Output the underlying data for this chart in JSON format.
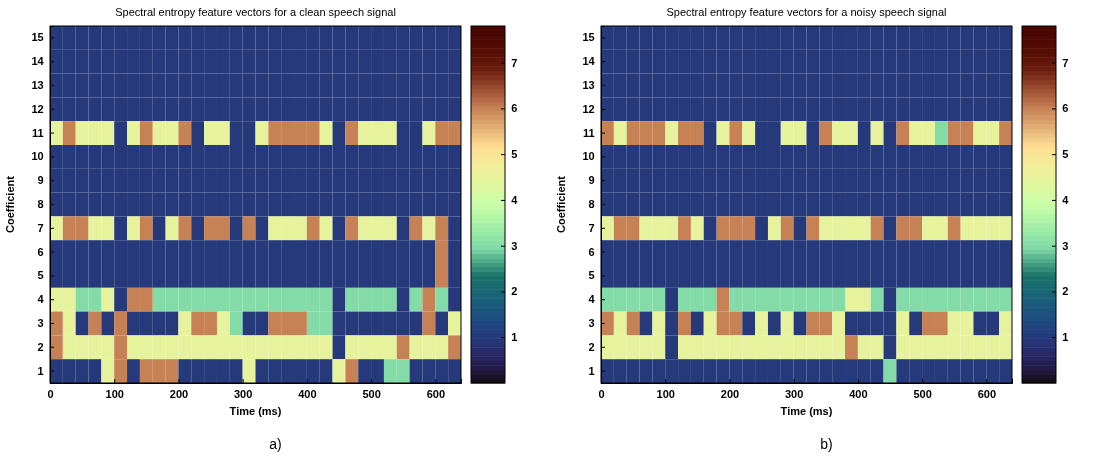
{
  "chart_data": [
    {
      "type": "heatmap",
      "title": "Spectral entropy feature vectors for a clean speech signal",
      "xlabel": "Time (ms)",
      "ylabel": "Coefficient",
      "annotations": [
        "a)"
      ],
      "x": [
        10,
        30,
        50,
        70,
        90,
        110,
        130,
        150,
        170,
        190,
        210,
        230,
        250,
        270,
        290,
        310,
        330,
        350,
        370,
        390,
        410,
        430,
        450,
        470,
        490,
        510,
        530,
        550,
        570,
        590,
        610,
        630
      ],
      "xlim": [
        0,
        640
      ],
      "xticks": [
        0,
        100,
        200,
        300,
        400,
        500,
        600
      ],
      "y_categories": [
        "15",
        "14",
        "13",
        "12",
        "11",
        "10",
        "9",
        "8",
        "7",
        "6",
        "5",
        "4",
        "3",
        "2",
        "1"
      ],
      "clim": [
        0,
        7.8
      ],
      "cticks": [
        1,
        2,
        3,
        4,
        5,
        6,
        7
      ],
      "cells": [
        [
          1,
          1,
          1,
          1,
          1,
          1,
          1,
          1,
          1,
          1,
          1,
          1,
          1,
          1,
          1,
          1,
          1,
          1,
          1,
          1,
          1,
          1,
          1,
          1,
          1,
          1,
          1,
          1,
          1,
          1,
          1,
          1
        ],
        [
          1,
          1,
          1,
          1,
          1,
          1,
          1,
          1,
          1,
          1,
          1,
          1,
          1,
          1,
          1,
          1,
          1,
          1,
          1,
          1,
          1,
          1,
          1,
          1,
          1,
          1,
          1,
          1,
          1,
          1,
          1,
          1
        ],
        [
          1,
          1,
          1,
          1,
          1,
          1,
          1,
          1,
          1,
          1,
          1,
          1,
          1,
          1,
          1,
          1,
          1,
          1,
          1,
          1,
          1,
          1,
          1,
          1,
          1,
          1,
          1,
          1,
          1,
          1,
          1,
          1
        ],
        [
          1,
          1,
          1,
          1,
          1,
          1,
          1,
          1,
          1,
          1,
          1,
          1,
          1,
          1,
          1,
          1,
          1,
          1,
          1,
          1,
          1,
          1,
          1,
          1,
          1,
          1,
          1,
          1,
          1,
          1,
          1,
          1
        ],
        [
          4.5,
          6,
          4.5,
          4.5,
          4.5,
          1,
          4.5,
          6,
          4.5,
          4.5,
          6,
          1,
          4.5,
          4.5,
          1,
          1,
          4.5,
          6,
          6,
          6,
          6,
          4.5,
          1,
          6,
          4.5,
          4.5,
          4.5,
          1,
          1,
          4.5,
          6,
          6
        ],
        [
          1,
          1,
          1,
          1,
          1,
          1,
          1,
          1,
          1,
          1,
          1,
          1,
          1,
          1,
          1,
          1,
          1,
          1,
          1,
          1,
          1,
          1,
          1,
          1,
          1,
          1,
          1,
          1,
          1,
          1,
          1,
          1
        ],
        [
          1,
          1,
          1,
          1,
          1,
          1,
          1,
          1,
          1,
          1,
          1,
          1,
          1,
          1,
          1,
          1,
          1,
          1,
          1,
          1,
          1,
          1,
          1,
          1,
          1,
          1,
          1,
          1,
          1,
          1,
          1,
          1
        ],
        [
          1,
          1,
          1,
          1,
          1,
          1,
          1,
          1,
          1,
          1,
          1,
          1,
          1,
          1,
          1,
          1,
          1,
          1,
          1,
          1,
          1,
          1,
          1,
          1,
          1,
          1,
          1,
          1,
          1,
          1,
          1,
          1
        ],
        [
          4.5,
          6,
          6,
          4.5,
          4.5,
          1,
          4.5,
          6,
          1,
          4.5,
          6,
          1,
          6,
          6,
          1,
          6,
          1,
          4.5,
          4.5,
          4.5,
          6,
          4.5,
          1,
          6,
          4.5,
          4.5,
          4.5,
          1,
          6,
          4.5,
          6,
          1
        ],
        [
          1,
          1,
          1,
          1,
          1,
          1,
          1,
          1,
          1,
          1,
          1,
          1,
          1,
          1,
          1,
          1,
          1,
          1,
          1,
          1,
          1,
          1,
          1,
          1,
          1,
          1,
          1,
          1,
          1,
          1,
          6,
          1
        ],
        [
          1,
          1,
          1,
          1,
          1,
          1,
          1,
          1,
          1,
          1,
          1,
          1,
          1,
          1,
          1,
          1,
          1,
          1,
          1,
          1,
          1,
          1,
          1,
          1,
          1,
          1,
          1,
          1,
          1,
          1,
          6,
          1
        ],
        [
          4.5,
          4.5,
          3,
          3,
          4.5,
          1,
          6,
          6,
          3,
          3,
          3,
          3,
          3,
          3,
          3,
          3,
          3,
          3,
          3,
          3,
          3,
          3,
          1,
          3,
          3,
          3,
          3,
          1,
          3,
          6,
          3,
          1
        ],
        [
          6,
          4.5,
          1,
          6,
          1,
          6,
          1,
          1,
          1,
          1,
          4.5,
          6,
          6,
          4.5,
          3,
          1,
          1,
          6,
          6,
          6,
          3,
          3,
          1,
          1,
          1,
          1,
          1,
          1,
          1,
          6,
          1,
          4.5
        ],
        [
          6,
          4.5,
          4.5,
          4.5,
          4.5,
          6,
          4.5,
          4.5,
          4.5,
          4.5,
          4.5,
          4.5,
          4.5,
          4.5,
          4.5,
          4.5,
          4.5,
          4.5,
          4.5,
          4.5,
          4.5,
          4.5,
          1,
          4.5,
          4.5,
          4.5,
          4.5,
          6,
          4.5,
          4.5,
          4.5,
          6
        ],
        [
          1,
          1,
          1,
          1,
          4.5,
          6,
          1,
          6,
          6,
          6,
          1,
          1,
          1,
          1,
          1,
          4.5,
          1,
          1,
          1,
          1,
          1,
          1,
          4.5,
          6,
          1,
          1,
          3,
          3,
          1,
          1,
          1,
          1
        ]
      ]
    },
    {
      "type": "heatmap",
      "title": "Spectral entropy feature vectors for a noisy speech signal",
      "xlabel": "Time (ms)",
      "ylabel": "Coefficient",
      "annotations": [
        "b)"
      ],
      "x": [
        10,
        30,
        50,
        70,
        90,
        110,
        130,
        150,
        170,
        190,
        210,
        230,
        250,
        270,
        290,
        310,
        330,
        350,
        370,
        390,
        410,
        430,
        450,
        470,
        490,
        510,
        530,
        550,
        570,
        590,
        610,
        630
      ],
      "xlim": [
        0,
        640
      ],
      "xticks": [
        0,
        100,
        200,
        300,
        400,
        500,
        600
      ],
      "y_categories": [
        "15",
        "14",
        "13",
        "12",
        "11",
        "10",
        "9",
        "8",
        "7",
        "6",
        "5",
        "4",
        "3",
        "2",
        "1"
      ],
      "clim": [
        0,
        7.8
      ],
      "cticks": [
        1,
        2,
        3,
        4,
        5,
        6,
        7
      ],
      "cells": [
        [
          1,
          1,
          1,
          1,
          1,
          1,
          1,
          1,
          1,
          1,
          1,
          1,
          1,
          1,
          1,
          1,
          1,
          1,
          1,
          1,
          1,
          1,
          1,
          1,
          1,
          1,
          1,
          1,
          1,
          1,
          1,
          1
        ],
        [
          1,
          1,
          1,
          1,
          1,
          1,
          1,
          1,
          1,
          1,
          1,
          1,
          1,
          1,
          1,
          1,
          1,
          1,
          1,
          1,
          1,
          1,
          1,
          1,
          1,
          1,
          1,
          1,
          1,
          1,
          1,
          1
        ],
        [
          1,
          1,
          1,
          1,
          1,
          1,
          1,
          1,
          1,
          1,
          1,
          1,
          1,
          1,
          1,
          1,
          1,
          1,
          1,
          1,
          1,
          1,
          1,
          1,
          1,
          1,
          1,
          1,
          1,
          1,
          1,
          1
        ],
        [
          1,
          1,
          1,
          1,
          1,
          1,
          1,
          1,
          1,
          1,
          1,
          1,
          1,
          1,
          1,
          1,
          1,
          1,
          1,
          1,
          1,
          1,
          1,
          1,
          1,
          1,
          1,
          1,
          1,
          1,
          1,
          1
        ],
        [
          6,
          4.5,
          6,
          6,
          6,
          4.5,
          6,
          6,
          1,
          4.5,
          6,
          4.5,
          1,
          1,
          4.5,
          4.5,
          1,
          6,
          4.5,
          4.5,
          1,
          4.5,
          1,
          6,
          4.5,
          4.5,
          3,
          6,
          6,
          4.5,
          4.5,
          6
        ],
        [
          1,
          1,
          1,
          1,
          1,
          1,
          1,
          1,
          1,
          1,
          1,
          1,
          1,
          1,
          1,
          1,
          1,
          1,
          1,
          1,
          1,
          1,
          1,
          1,
          1,
          1,
          1,
          1,
          1,
          1,
          1,
          1
        ],
        [
          1,
          1,
          1,
          1,
          1,
          1,
          1,
          1,
          1,
          1,
          1,
          1,
          1,
          1,
          1,
          1,
          1,
          1,
          1,
          1,
          1,
          1,
          1,
          1,
          1,
          1,
          1,
          1,
          1,
          1,
          1,
          1
        ],
        [
          1,
          1,
          1,
          1,
          1,
          1,
          1,
          1,
          1,
          1,
          1,
          1,
          1,
          1,
          1,
          1,
          1,
          1,
          1,
          1,
          1,
          1,
          1,
          1,
          1,
          1,
          1,
          1,
          1,
          1,
          1,
          1
        ],
        [
          4.5,
          6,
          6,
          4.5,
          4.5,
          4.5,
          6,
          4.5,
          1,
          6,
          6,
          6,
          1,
          4.5,
          6,
          1,
          6,
          4.5,
          4.5,
          4.5,
          4.5,
          6,
          1,
          6,
          6,
          4.5,
          4.5,
          6,
          4.5,
          4.5,
          4.5,
          4.5
        ],
        [
          1,
          1,
          1,
          1,
          1,
          1,
          1,
          1,
          1,
          1,
          1,
          1,
          1,
          1,
          1,
          1,
          1,
          1,
          1,
          1,
          1,
          1,
          1,
          1,
          1,
          1,
          1,
          1,
          1,
          1,
          1,
          1
        ],
        [
          1,
          1,
          1,
          1,
          1,
          1,
          1,
          1,
          1,
          1,
          1,
          1,
          1,
          1,
          1,
          1,
          1,
          1,
          1,
          1,
          1,
          1,
          1,
          1,
          1,
          1,
          1,
          1,
          1,
          1,
          1,
          1
        ],
        [
          3,
          3,
          3,
          3,
          3,
          1,
          3,
          3,
          3,
          6,
          3,
          3,
          3,
          3,
          3,
          3,
          3,
          3,
          3,
          4.5,
          4.5,
          3,
          1,
          3,
          3,
          3,
          3,
          3,
          3,
          3,
          3,
          3
        ],
        [
          6,
          4.5,
          6,
          1,
          4.5,
          1,
          6,
          1,
          4.5,
          6,
          6,
          1,
          4.5,
          1,
          4.5,
          1,
          6,
          6,
          4.5,
          1,
          1,
          1,
          1,
          4.5,
          1,
          6,
          6,
          4.5,
          4.5,
          1,
          1,
          4.5
        ],
        [
          4.5,
          4.5,
          4.5,
          4.5,
          4.5,
          1,
          4.5,
          4.5,
          4.5,
          4.5,
          4.5,
          4.5,
          4.5,
          4.5,
          4.5,
          4.5,
          4.5,
          4.5,
          4.5,
          6,
          4.5,
          4.5,
          1,
          4.5,
          4.5,
          4.5,
          4.5,
          4.5,
          4.5,
          4.5,
          4.5,
          4.5
        ],
        [
          1,
          1,
          1,
          1,
          1,
          1,
          1,
          1,
          1,
          1,
          1,
          1,
          1,
          1,
          1,
          1,
          1,
          1,
          1,
          1,
          1,
          1,
          3,
          1,
          1,
          1,
          1,
          1,
          1,
          1,
          1,
          1
        ]
      ]
    }
  ]
}
